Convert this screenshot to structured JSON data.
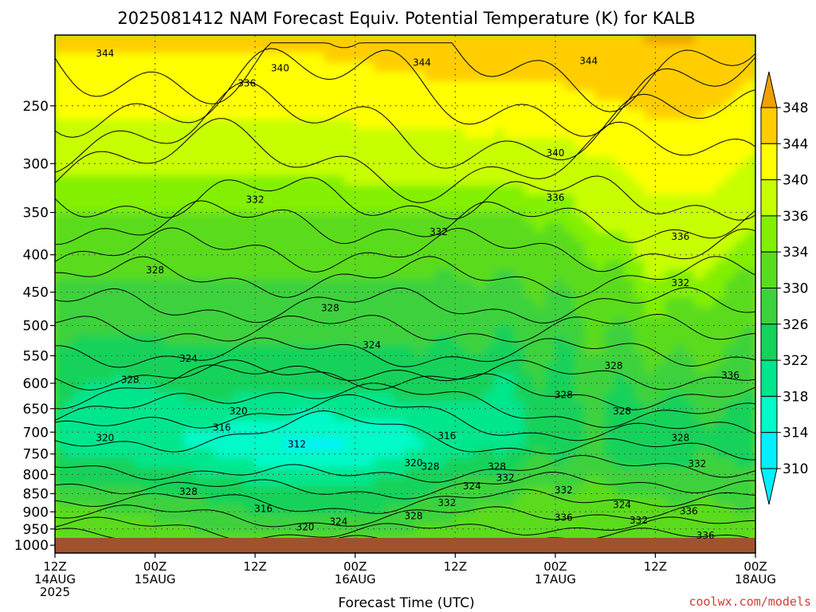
{
  "chart_data": {
    "type": "heatmap",
    "title": "2025081412 NAM Forecast Equiv. Potential Temperature (K) for KALB",
    "xlabel": "Forecast Time (UTC)",
    "ylabel": "",
    "credit": "coolwx.com/models",
    "x_ticks": [
      {
        "hour": 0,
        "label": "12Z",
        "sub": "14AUG",
        "year": "2025"
      },
      {
        "hour": 12,
        "label": "00Z",
        "sub": "15AUG",
        "year": ""
      },
      {
        "hour": 24,
        "label": "12Z",
        "sub": "",
        "year": ""
      },
      {
        "hour": 36,
        "label": "00Z",
        "sub": "16AUG",
        "year": ""
      },
      {
        "hour": 48,
        "label": "12Z",
        "sub": "",
        "year": ""
      },
      {
        "hour": 60,
        "label": "00Z",
        "sub": "17AUG",
        "year": ""
      },
      {
        "hour": 72,
        "label": "12Z",
        "sub": "",
        "year": ""
      },
      {
        "hour": 84,
        "label": "00Z",
        "sub": "18AUG",
        "year": ""
      }
    ],
    "xlim": [
      0,
      84
    ],
    "y_ticks": [
      250,
      300,
      350,
      400,
      450,
      500,
      550,
      600,
      650,
      700,
      750,
      800,
      850,
      900,
      950,
      1000
    ],
    "ylim": [
      1025,
      200
    ],
    "y_scale": "log (pressure, hPa)",
    "grid": true,
    "colorbar": {
      "labels": [
        "348",
        "344",
        "340",
        "336",
        "334",
        "330",
        "326",
        "322",
        "318",
        "314",
        "310"
      ],
      "levels": [
        310,
        314,
        318,
        322,
        326,
        330,
        334,
        336,
        340,
        344,
        348
      ],
      "colors": [
        "#00f0ff",
        "#00fac8",
        "#00e68c",
        "#14d25a",
        "#3cd23c",
        "#5adc1e",
        "#82f000",
        "#c8ff00",
        "#ffff00",
        "#ffcd00",
        "#f0a000"
      ]
    },
    "contour_labels": [
      {
        "v": "344",
        "h": 6,
        "p": 212
      },
      {
        "v": "340",
        "h": 27,
        "p": 222
      },
      {
        "v": "336",
        "h": 23,
        "p": 233
      },
      {
        "v": "344",
        "h": 44,
        "p": 218
      },
      {
        "v": "344",
        "h": 64,
        "p": 217
      },
      {
        "v": "340",
        "h": 60,
        "p": 290
      },
      {
        "v": "336",
        "h": 60,
        "p": 334
      },
      {
        "v": "332",
        "h": 24,
        "p": 336
      },
      {
        "v": "332",
        "h": 46,
        "p": 372
      },
      {
        "v": "336",
        "h": 75,
        "p": 378
      },
      {
        "v": "332",
        "h": 75,
        "p": 437
      },
      {
        "v": "328",
        "h": 12,
        "p": 420
      },
      {
        "v": "328",
        "h": 33,
        "p": 473
      },
      {
        "v": "324",
        "h": 38,
        "p": 532
      },
      {
        "v": "324",
        "h": 16,
        "p": 555
      },
      {
        "v": "328",
        "h": 9,
        "p": 593
      },
      {
        "v": "336",
        "h": 81,
        "p": 585
      },
      {
        "v": "328",
        "h": 67,
        "p": 568
      },
      {
        "v": "328",
        "h": 61,
        "p": 622
      },
      {
        "v": "328",
        "h": 68,
        "p": 655
      },
      {
        "v": "320",
        "h": 22,
        "p": 655
      },
      {
        "v": "316",
        "h": 20,
        "p": 690
      },
      {
        "v": "316",
        "h": 47,
        "p": 708
      },
      {
        "v": "312",
        "h": 29,
        "p": 727
      },
      {
        "v": "320",
        "h": 6,
        "p": 713
      },
      {
        "v": "328",
        "h": 75,
        "p": 713
      },
      {
        "v": "320",
        "h": 43,
        "p": 772
      },
      {
        "v": "328",
        "h": 45,
        "p": 780
      },
      {
        "v": "328",
        "h": 53,
        "p": 780
      },
      {
        "v": "324",
        "h": 50,
        "p": 830
      },
      {
        "v": "332",
        "h": 54,
        "p": 808
      },
      {
        "v": "332",
        "h": 61,
        "p": 840
      },
      {
        "v": "332",
        "h": 77,
        "p": 773
      },
      {
        "v": "328",
        "h": 16,
        "p": 845
      },
      {
        "v": "332",
        "h": 47,
        "p": 875
      },
      {
        "v": "324",
        "h": 68,
        "p": 880
      },
      {
        "v": "316",
        "h": 25,
        "p": 892
      },
      {
        "v": "328",
        "h": 43,
        "p": 912
      },
      {
        "v": "336",
        "h": 61,
        "p": 917
      },
      {
        "v": "336",
        "h": 76,
        "p": 898
      },
      {
        "v": "332",
        "h": 70,
        "p": 925
      },
      {
        "v": "324",
        "h": 34,
        "p": 928
      },
      {
        "v": "320",
        "h": 30,
        "p": 945
      },
      {
        "v": "336",
        "h": 78,
        "p": 970
      }
    ]
  }
}
